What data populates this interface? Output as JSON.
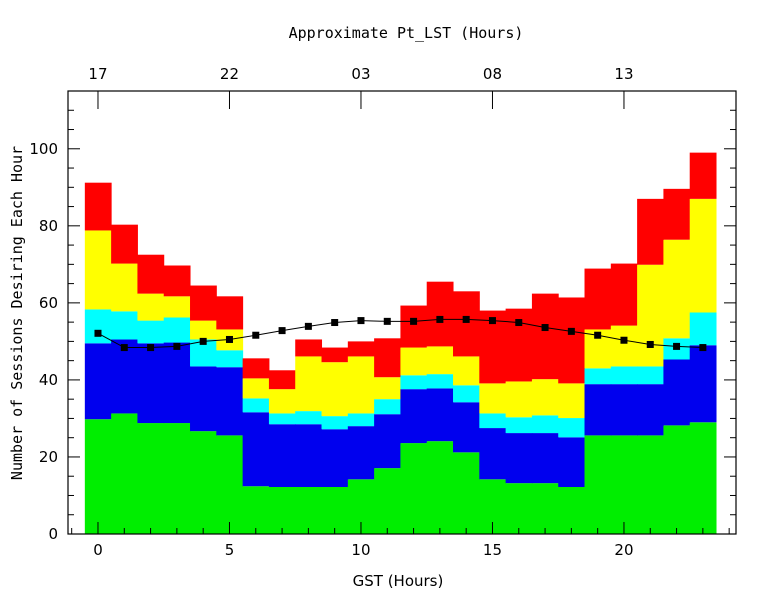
{
  "chart_data": {
    "type": "bar",
    "stacked": true,
    "xlabel": "GST (Hours)",
    "ylabel": "Number of Sessions Desiring Each Hour",
    "top_axis_label": "Approximate Pt_LST (Hours)",
    "top_tick_labels": [
      "17",
      "22",
      "03",
      "08",
      "13"
    ],
    "x_tick_labels": [
      "0",
      "5",
      "10",
      "15",
      "20"
    ],
    "y_tick_labels": [
      "0",
      "20",
      "40",
      "60",
      "80",
      "100"
    ],
    "xlim": [
      -1.14,
      24.26
    ],
    "ylim": [
      0,
      115
    ],
    "grid": false,
    "x": [
      0,
      1,
      2,
      3,
      4,
      5,
      6,
      7,
      8,
      9,
      10,
      11,
      12,
      13,
      14,
      15,
      16,
      17,
      18,
      19,
      20,
      21,
      22,
      23
    ],
    "series_colors": [
      "#00ee00",
      "#0000ee",
      "#00ffff",
      "#ffff00",
      "#ff0000"
    ],
    "stack_tops": [
      [
        29.8,
        31.3,
        28.8,
        28.8,
        26.7,
        25.6,
        12.4,
        12.2,
        12.2,
        12.2,
        14.2,
        17.1,
        23.6,
        24.1,
        21.2,
        14.2,
        13.2,
        13.2,
        12.2,
        25.6,
        25.6,
        25.6,
        28.2,
        29.0
      ],
      [
        49.5,
        50.5,
        49.5,
        49.7,
        43.5,
        43.3,
        31.6,
        28.5,
        28.5,
        27.2,
        28.0,
        31.1,
        37.6,
        37.8,
        34.2,
        27.5,
        26.2,
        26.2,
        25.1,
        38.9,
        38.9,
        38.9,
        45.3,
        49.0
      ],
      [
        58.3,
        57.8,
        55.4,
        56.2,
        50.5,
        47.7,
        35.2,
        31.3,
        31.9,
        30.6,
        31.3,
        35.0,
        41.2,
        41.5,
        38.6,
        31.3,
        30.3,
        30.8,
        30.1,
        43.0,
        43.5,
        43.5,
        50.8,
        57.5
      ],
      [
        78.8,
        70.2,
        62.4,
        61.7,
        55.4,
        53.1,
        40.4,
        37.6,
        46.1,
        44.6,
        46.1,
        40.7,
        48.4,
        48.7,
        46.1,
        39.1,
        39.6,
        40.2,
        39.1,
        53.1,
        54.1,
        69.9,
        76.4,
        87.0
      ],
      [
        91.2,
        80.3,
        72.5,
        69.7,
        64.5,
        61.7,
        45.6,
        42.5,
        50.5,
        48.4,
        50.0,
        50.8,
        59.3,
        65.5,
        63.0,
        58.0,
        58.5,
        62.4,
        61.4,
        68.9,
        70.2,
        87.0,
        89.6,
        99.0
      ]
    ],
    "line": {
      "color": "#000000",
      "marker": "square",
      "values": [
        52.1,
        48.4,
        48.4,
        48.7,
        50.0,
        50.5,
        51.6,
        52.8,
        53.9,
        54.9,
        55.4,
        55.2,
        55.2,
        55.7,
        55.7,
        55.4,
        54.9,
        53.6,
        52.6,
        51.6,
        50.3,
        49.2,
        48.7,
        48.4
      ]
    }
  }
}
